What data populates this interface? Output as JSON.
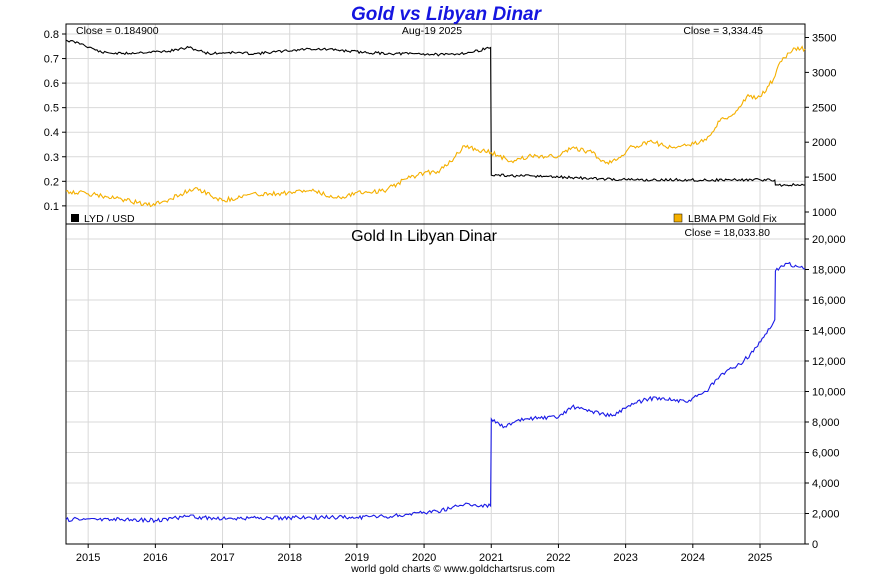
{
  "footer": "world gold charts © www.goldchartsrus.com",
  "colors": {
    "lyd": "#000000",
    "gold": "#f5b000",
    "gold_lyd": "#1a1ae6",
    "title": "#1515e0",
    "grid": "#d9d9d9"
  },
  "chart_data": [
    {
      "type": "line",
      "title": "Gold vs Libyan Dinar",
      "date_label": "Aug-19  2025",
      "x_tick_labels": [
        "2015",
        "2016",
        "2017",
        "2018",
        "2019",
        "2020",
        "2021",
        "2022",
        "2023",
        "2024",
        "2025"
      ],
      "x_range": [
        2014.67,
        2025.67
      ],
      "grid": true,
      "legend": "bottom",
      "left_axis": {
        "ticks": [
          "0.8",
          "0.7",
          "0.6",
          "0.5",
          "0.4",
          "0.3",
          "0.2",
          "0.1"
        ],
        "ylim": [
          0.075,
          0.8
        ]
      },
      "right_axis": {
        "ticks": [
          "3500",
          "3000",
          "2500",
          "2000",
          "1500",
          "1000"
        ],
        "ylim": [
          1000,
          3550
        ]
      },
      "series": [
        {
          "name": "LYD / USD",
          "axis": "left",
          "close_label": "Close = 0.184900",
          "x": [
            2014.67,
            2014.9,
            2015.2,
            2015.5,
            2015.8,
            2016.2,
            2016.5,
            2016.8,
            2017.1,
            2017.5,
            2017.9,
            2018.3,
            2018.7,
            2019.1,
            2019.5,
            2019.9,
            2020.3,
            2020.7,
            2020.99,
            2021.0,
            2021.4,
            2021.8,
            2022.2,
            2022.6,
            2023.0,
            2023.4,
            2023.8,
            2024.2,
            2024.6,
            2025.0,
            2025.22,
            2025.23,
            2025.67
          ],
          "values": [
            0.775,
            0.76,
            0.725,
            0.72,
            0.725,
            0.73,
            0.745,
            0.72,
            0.725,
            0.72,
            0.73,
            0.74,
            0.735,
            0.725,
            0.72,
            0.72,
            0.715,
            0.725,
            0.745,
            0.225,
            0.222,
            0.22,
            0.215,
            0.21,
            0.207,
            0.205,
            0.206,
            0.205,
            0.206,
            0.206,
            0.205,
            0.185,
            0.185
          ]
        },
        {
          "name": "LBMA PM Gold Fix",
          "axis": "right",
          "close_label": "Close = 3,334.45",
          "x": [
            2014.67,
            2015.0,
            2015.5,
            2015.95,
            2016.2,
            2016.6,
            2017.0,
            2017.4,
            2017.9,
            2018.3,
            2018.7,
            2019.0,
            2019.4,
            2019.75,
            2020.0,
            2020.2,
            2020.4,
            2020.6,
            2020.8,
            2021.0,
            2021.3,
            2021.6,
            2022.0,
            2022.2,
            2022.5,
            2022.7,
            2022.9,
            2023.1,
            2023.4,
            2023.7,
            2023.9,
            2024.2,
            2024.4,
            2024.6,
            2024.8,
            2025.0,
            2025.2,
            2025.3,
            2025.5,
            2025.67
          ],
          "values": [
            1300,
            1260,
            1180,
            1090,
            1180,
            1350,
            1160,
            1250,
            1270,
            1310,
            1200,
            1280,
            1300,
            1480,
            1560,
            1580,
            1720,
            1950,
            1890,
            1850,
            1730,
            1800,
            1800,
            1920,
            1850,
            1700,
            1780,
            1940,
            2000,
            1920,
            1950,
            2030,
            2300,
            2400,
            2650,
            2650,
            2900,
            3150,
            3350,
            3334
          ]
        }
      ]
    },
    {
      "type": "line",
      "title": "Gold In Libyan Dinar",
      "x_range": [
        2014.67,
        2025.67
      ],
      "grid": true,
      "right_axis": {
        "ticks": [
          "20,000",
          "18,000",
          "16,000",
          "14,000",
          "12,000",
          "10,000",
          "8,000",
          "6,000",
          "4,000",
          "2,000",
          "0"
        ],
        "ylim": [
          0,
          20000
        ]
      },
      "series": [
        {
          "name": "Gold In Libyan Dinar",
          "axis": "right",
          "close_label": "Close = 18,033.80",
          "x": [
            2014.67,
            2015.0,
            2015.5,
            2016.0,
            2016.5,
            2017.0,
            2017.5,
            2018.0,
            2018.5,
            2019.0,
            2019.5,
            2019.9,
            2020.2,
            2020.6,
            2020.99,
            2021.0,
            2021.2,
            2021.5,
            2022.0,
            2022.2,
            2022.5,
            2022.8,
            2023.0,
            2023.3,
            2023.5,
            2023.9,
            2024.2,
            2024.4,
            2024.7,
            2024.9,
            2025.1,
            2025.22,
            2025.23,
            2025.4,
            2025.55,
            2025.67
          ],
          "values": [
            1600,
            1650,
            1620,
            1550,
            1800,
            1650,
            1700,
            1720,
            1750,
            1750,
            1800,
            2050,
            2150,
            2600,
            2500,
            8200,
            7700,
            8200,
            8300,
            9000,
            8700,
            8400,
            8900,
            9500,
            9600,
            9300,
            10000,
            11000,
            11800,
            12600,
            13800,
            14700,
            17900,
            18400,
            18200,
            18034
          ]
        }
      ]
    }
  ]
}
